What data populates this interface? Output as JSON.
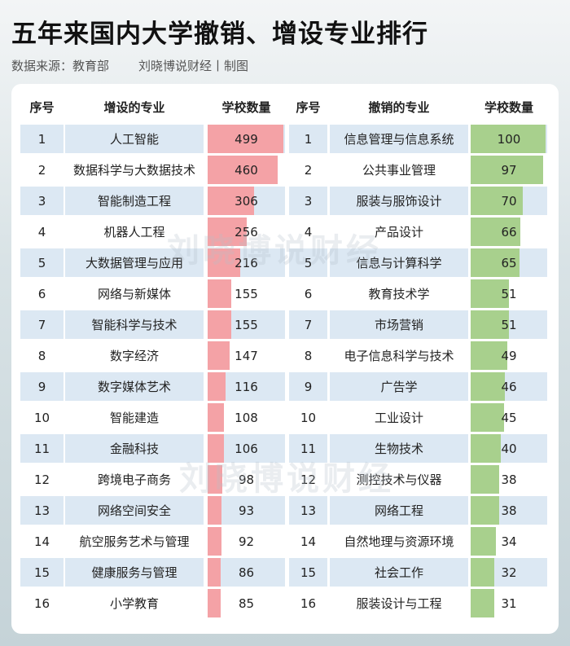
{
  "header": {
    "title": "五年来国内大学撤销、增设专业排行",
    "source": "数据来源：教育部",
    "credit": "刘晓博说财经丨制图"
  },
  "watermark": "刘晓博说财经",
  "bar_colors": [
    "#f4a2a6",
    "#a8d08d"
  ],
  "table": {
    "columns": [
      "序号",
      "增设的专业",
      "学校数量",
      "序号",
      "撤销的专业",
      "学校数量"
    ],
    "rows": [
      [
        1,
        "人工智能",
        499,
        1,
        "信息管理与信息系统",
        100
      ],
      [
        2,
        "数据科学与大数据技术",
        460,
        2,
        "公共事业管理",
        97
      ],
      [
        3,
        "智能制造工程",
        306,
        3,
        "服装与服饰设计",
        70
      ],
      [
        4,
        "机器人工程",
        256,
        4,
        "产品设计",
        66
      ],
      [
        5,
        "大数据管理与应用",
        216,
        5,
        "信息与计算科学",
        65
      ],
      [
        6,
        "网络与新媒体",
        155,
        6,
        "教育技术学",
        51
      ],
      [
        7,
        "智能科学与技术",
        155,
        7,
        "市场营销",
        51
      ],
      [
        8,
        "数字经济",
        147,
        8,
        "电子信息科学与技术",
        49
      ],
      [
        9,
        "数字媒体艺术",
        116,
        9,
        "广告学",
        46
      ],
      [
        10,
        "智能建造",
        108,
        10,
        "工业设计",
        45
      ],
      [
        11,
        "金融科技",
        106,
        11,
        "生物技术",
        40
      ],
      [
        12,
        "跨境电子商务",
        98,
        12,
        "测控技术与仪器",
        38
      ],
      [
        13,
        "网络空间安全",
        93,
        13,
        "网络工程",
        38
      ],
      [
        14,
        "航空服务艺术与管理",
        92,
        14,
        "自然地理与资源环境",
        34
      ],
      [
        15,
        "健康服务与管理",
        86,
        15,
        "社会工作",
        32
      ],
      [
        16,
        "小学教育",
        85,
        16,
        "服装设计与工程",
        31
      ]
    ]
  }
}
